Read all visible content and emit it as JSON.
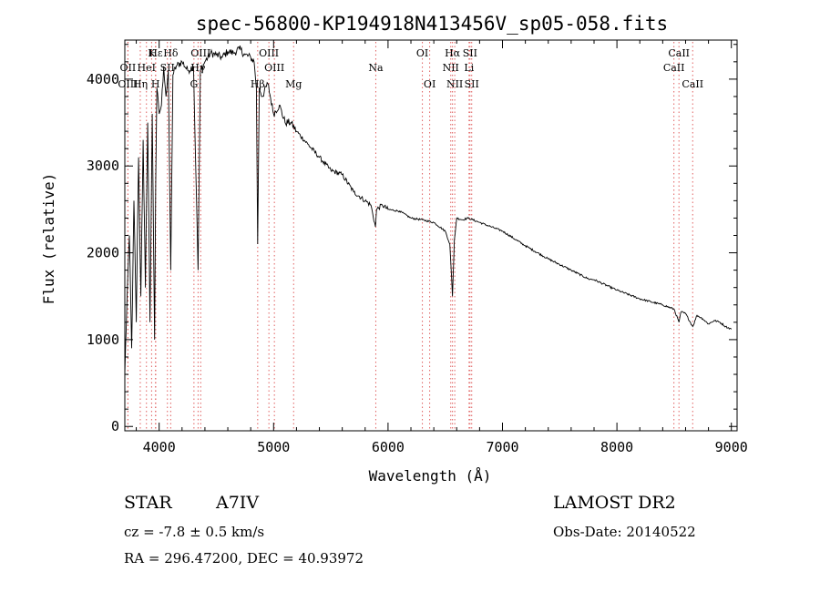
{
  "chart_data": {
    "type": "line",
    "title": "spec-56800-KP194918N413456V_sp05-058.fits",
    "xlabel": "Wavelength (Å)",
    "ylabel": "Flux (relative)",
    "xlim": [
      3700,
      9050
    ],
    "ylim": [
      -50,
      4450
    ],
    "x_ticks": [
      4000,
      5000,
      6000,
      7000,
      8000,
      9000
    ],
    "y_ticks": [
      0,
      1000,
      2000,
      3000,
      4000
    ],
    "grid": false,
    "series": [
      {
        "name": "flux",
        "x": [
          3700,
          3720,
          3740,
          3760,
          3780,
          3800,
          3820,
          3840,
          3860,
          3880,
          3900,
          3920,
          3940,
          3960,
          3970,
          3980,
          4000,
          4020,
          4040,
          4060,
          4080,
          4101,
          4120,
          4150,
          4200,
          4250,
          4300,
          4340,
          4360,
          4400,
          4450,
          4500,
          4550,
          4600,
          4650,
          4700,
          4750,
          4800,
          4830,
          4850,
          4861,
          4875,
          4900,
          4950,
          5000,
          5050,
          5100,
          5150,
          5200,
          5300,
          5400,
          5500,
          5600,
          5700,
          5800,
          5850,
          5890,
          5900,
          5950,
          6000,
          6100,
          6200,
          6300,
          6400,
          6500,
          6540,
          6563,
          6580,
          6600,
          6650,
          6700,
          6800,
          6900,
          7000,
          7200,
          7400,
          7600,
          7750,
          7800,
          8000,
          8200,
          8400,
          8500,
          8542,
          8560,
          8600,
          8662,
          8700,
          8750,
          8800,
          8850,
          8900,
          8950,
          9000
        ],
        "values": [
          600,
          1500,
          2200,
          900,
          2600,
          1200,
          3100,
          1500,
          3300,
          1600,
          3500,
          1200,
          3600,
          1000,
          2800,
          3900,
          3600,
          3700,
          4150,
          3800,
          4100,
          1800,
          4050,
          4150,
          4200,
          4100,
          4150,
          1800,
          4100,
          4200,
          4300,
          4280,
          4250,
          4320,
          4300,
          4350,
          4280,
          4250,
          4200,
          3900,
          2100,
          3900,
          3800,
          3950,
          3600,
          3700,
          3500,
          3500,
          3400,
          3250,
          3100,
          2950,
          2900,
          2700,
          2600,
          2550,
          2300,
          2500,
          2550,
          2500,
          2480,
          2400,
          2380,
          2350,
          2250,
          2100,
          1500,
          2150,
          2400,
          2380,
          2400,
          2350,
          2300,
          2250,
          2080,
          1930,
          1800,
          1700,
          1690,
          1570,
          1470,
          1400,
          1350,
          1200,
          1320,
          1300,
          1150,
          1280,
          1240,
          1180,
          1220,
          1200,
          1150,
          1120
        ]
      }
    ],
    "line_markers": [
      {
        "label": "Hε",
        "x": 3970,
        "row": 1
      },
      {
        "label": "K",
        "x": 3934,
        "row": 1
      },
      {
        "label": "Hδ",
        "x": 4101,
        "row": 1
      },
      {
        "label": "OIII",
        "x": 4363,
        "row": 1
      },
      {
        "label": "OIII",
        "x": 4959,
        "row": 1
      },
      {
        "label": "OI",
        "x": 6300,
        "row": 1
      },
      {
        "label": "Hα",
        "x": 6563,
        "row": 1
      },
      {
        "label": "SII",
        "x": 6716,
        "row": 1
      },
      {
        "label": "CaII",
        "x": 8542,
        "row": 1
      },
      {
        "label": "OII",
        "x": 3727,
        "row": 2
      },
      {
        "label": "HeI",
        "x": 3889,
        "row": 2
      },
      {
        "label": "SII",
        "x": 4072,
        "row": 2
      },
      {
        "label": "Hγ",
        "x": 4340,
        "row": 2
      },
      {
        "label": "OIII",
        "x": 5007,
        "row": 2
      },
      {
        "label": "Na",
        "x": 5893,
        "row": 2
      },
      {
        "label": "NII",
        "x": 6548,
        "row": 2
      },
      {
        "label": "Li",
        "x": 6708,
        "row": 2
      },
      {
        "label": "CaII",
        "x": 8498,
        "row": 2
      },
      {
        "label": "OIII",
        "x": 3727,
        "row": 3
      },
      {
        "label": "Hη",
        "x": 3835,
        "row": 3
      },
      {
        "label": "H",
        "x": 3968,
        "row": 3
      },
      {
        "label": "G",
        "x": 4304,
        "row": 3
      },
      {
        "label": "Hβ",
        "x": 4861,
        "row": 3
      },
      {
        "label": "Mg",
        "x": 5175,
        "row": 3
      },
      {
        "label": "OI",
        "x": 6364,
        "row": 3
      },
      {
        "label": "NII",
        "x": 6583,
        "row": 3
      },
      {
        "label": "SII",
        "x": 6731,
        "row": 3
      },
      {
        "label": "CaII",
        "x": 8662,
        "row": 3
      }
    ]
  },
  "info": {
    "object_type": "STAR",
    "spectral_class": "A7IV",
    "survey": "LAMOST DR2",
    "redshift": "cz = -7.8 ± 0.5 km/s",
    "obs_date": "Obs-Date: 20140522",
    "coordinates": "RA = 296.47200, DEC =  40.93972"
  }
}
